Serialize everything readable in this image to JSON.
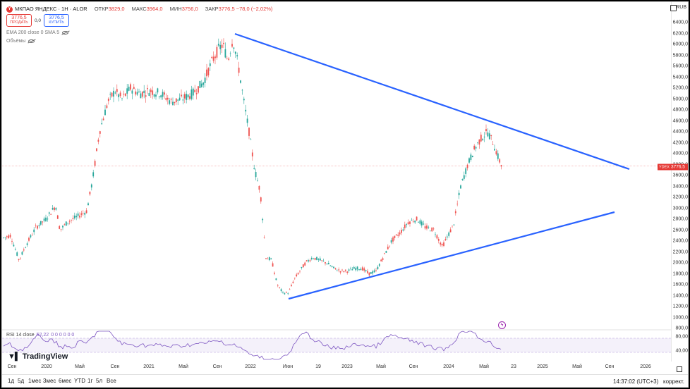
{
  "symbol": {
    "title": "МКПАО ЯНДЕКС · 1Н · ALOR",
    "logo_letter": "Y",
    "ohlc": [
      {
        "label": "ОТКР",
        "value": "3829,0"
      },
      {
        "label": "МАКС",
        "value": "3964,0"
      },
      {
        "label": "МИН",
        "value": "3756,0"
      },
      {
        "label": "ЗАКР",
        "value": "3776,5"
      }
    ],
    "change": "−78,0 (−2,02%)"
  },
  "trade": {
    "sell_price": "3776,5",
    "sell_label": "ПРОДАТЬ",
    "spread": "0,0",
    "buy_price": "3776,5",
    "buy_label": "КУПИТЬ"
  },
  "indicators": {
    "ema": "EMA 200 close 0 SMA 5",
    "volume": "Объёмы",
    "rsi_name": "RSI 14 close",
    "rsi_value": "52,22",
    "rsi_zeros": "0 0 0 0 0 0"
  },
  "price_axis": {
    "currency": "RUB",
    "ticks": [
      "6400,0",
      "6200,0",
      "6000,0",
      "5800,0",
      "5600,0",
      "5400,0",
      "5200,0",
      "5000,0",
      "4800,0",
      "4600,0",
      "4400,0",
      "4200,0",
      "4000,0",
      "3800,0",
      "3600,0",
      "3400,0",
      "3200,0",
      "3000,0",
      "2800,0",
      "2600,0",
      "2400,0",
      "2200,0",
      "2000,0",
      "1800,0",
      "1600,0",
      "1400,0",
      "1200,0",
      "1000,0",
      "800,0"
    ],
    "last_symbol": "YDEX",
    "last_price": "3776,5",
    "rsi_ticks": [
      "80,00",
      "40,00"
    ]
  },
  "time_axis": [
    "Сен",
    "2020",
    "Май",
    "Сен",
    "2021",
    "Май",
    "Сен",
    "2022",
    "Июн",
    "19",
    "2023",
    "Май",
    "Сен",
    "2024",
    "Май",
    "23",
    "2025",
    "Май",
    "Сен",
    "2026"
  ],
  "bottom_bar": {
    "ranges": [
      "1д",
      "5д",
      "1мес",
      "3мес",
      "6мес",
      "YTD",
      "1г",
      "5л",
      "Все"
    ],
    "clock": "14:37:02 (UTC+3)",
    "correction": "коррект."
  },
  "branding": {
    "name": "TradingView"
  },
  "colors": {
    "up": "#26a69a",
    "down": "#ef5350",
    "trend": "#2962ff",
    "rsi": "#7e57c2"
  }
}
